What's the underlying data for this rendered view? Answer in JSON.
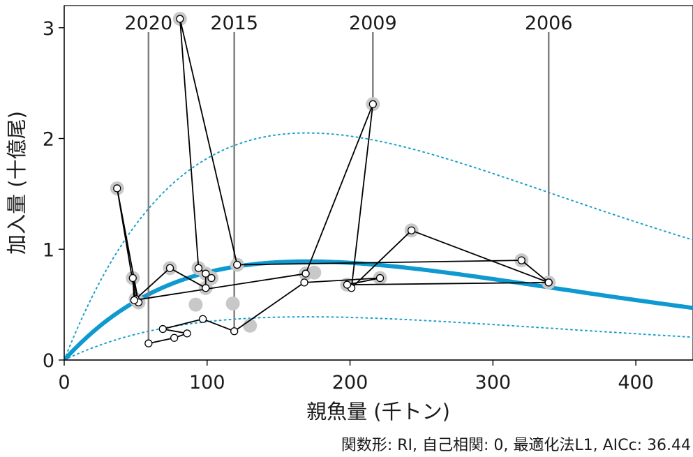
{
  "chart_data": {
    "type": "scatter",
    "xlabel": "親魚量 (千トン)",
    "ylabel": "加入量 (十億尾)",
    "caption": "関数形: RI, 自己相関: 0, 最適化法L1, AICc: 36.44",
    "xlim": [
      0,
      440
    ],
    "ylim": [
      0,
      3.2
    ],
    "xticks": [
      0,
      100,
      200,
      300,
      400
    ],
    "yticks": [
      0,
      1,
      2,
      3
    ],
    "grid": false,
    "colors": {
      "fit": "#0e9ad0",
      "interval": "#1aa0cc",
      "path": "#000000",
      "background_points": "#c8c8c8",
      "year_marker": "#808080"
    },
    "fitted_curve": {
      "name": "",
      "model": "RI",
      "peak_x": 170,
      "peak_y": 0.89,
      "style": "solid"
    },
    "interval_upper": {
      "peak_x": 170,
      "peak_y": 2.05,
      "style": "dotted"
    },
    "interval_lower": {
      "peak_x": 170,
      "peak_y": 0.39,
      "style": "dotted"
    },
    "trajectory": [
      {
        "x": 339,
        "y": 0.7
      },
      {
        "x": 320,
        "y": 0.9
      },
      {
        "x": 121,
        "y": 0.86
      },
      {
        "x": 81,
        "y": 3.08
      },
      {
        "x": 94,
        "y": 0.83
      },
      {
        "x": 103,
        "y": 0.74
      },
      {
        "x": 99,
        "y": 0.78
      },
      {
        "x": 99,
        "y": 0.65
      },
      {
        "x": 74,
        "y": 0.83
      },
      {
        "x": 50,
        "y": 0.55
      },
      {
        "x": 37,
        "y": 1.55
      },
      {
        "x": 52,
        "y": 0.52
      },
      {
        "x": 48,
        "y": 0.74
      },
      {
        "x": 49,
        "y": 0.54
      },
      {
        "x": 169,
        "y": 0.78
      },
      {
        "x": 216,
        "y": 2.31
      },
      {
        "x": 201,
        "y": 0.65
      },
      {
        "x": 243,
        "y": 1.17
      },
      {
        "x": 339,
        "y": 0.7
      },
      {
        "x": 198,
        "y": 0.68
      },
      {
        "x": 221,
        "y": 0.74
      },
      {
        "x": 168,
        "y": 0.7
      },
      {
        "x": 119,
        "y": 0.26
      },
      {
        "x": 97,
        "y": 0.37
      },
      {
        "x": 69,
        "y": 0.28
      },
      {
        "x": 86,
        "y": 0.24
      },
      {
        "x": 77,
        "y": 0.2
      },
      {
        "x": 59,
        "y": 0.15
      }
    ],
    "background_points": [
      {
        "x": 37,
        "y": 1.55
      },
      {
        "x": 48,
        "y": 0.74
      },
      {
        "x": 50,
        "y": 0.55
      },
      {
        "x": 52,
        "y": 0.52
      },
      {
        "x": 74,
        "y": 0.83
      },
      {
        "x": 81,
        "y": 3.08
      },
      {
        "x": 94,
        "y": 0.83
      },
      {
        "x": 99,
        "y": 0.78
      },
      {
        "x": 99,
        "y": 0.65
      },
      {
        "x": 103,
        "y": 0.74
      },
      {
        "x": 121,
        "y": 0.86
      },
      {
        "x": 169,
        "y": 0.78
      },
      {
        "x": 175,
        "y": 0.79
      },
      {
        "x": 198,
        "y": 0.68
      },
      {
        "x": 216,
        "y": 2.31
      },
      {
        "x": 221,
        "y": 0.74
      },
      {
        "x": 243,
        "y": 1.17
      },
      {
        "x": 320,
        "y": 0.9
      },
      {
        "x": 339,
        "y": 0.7
      },
      {
        "x": 92,
        "y": 0.5
      },
      {
        "x": 118,
        "y": 0.51
      },
      {
        "x": 130,
        "y": 0.31
      }
    ],
    "year_markers": [
      {
        "label": "2020",
        "x": 59,
        "y": 0.15
      },
      {
        "label": "2015",
        "x": 119,
        "y": 0.26
      },
      {
        "label": "2009",
        "x": 216,
        "y": 2.31
      },
      {
        "label": "2006",
        "x": 339,
        "y": 0.7
      }
    ]
  }
}
